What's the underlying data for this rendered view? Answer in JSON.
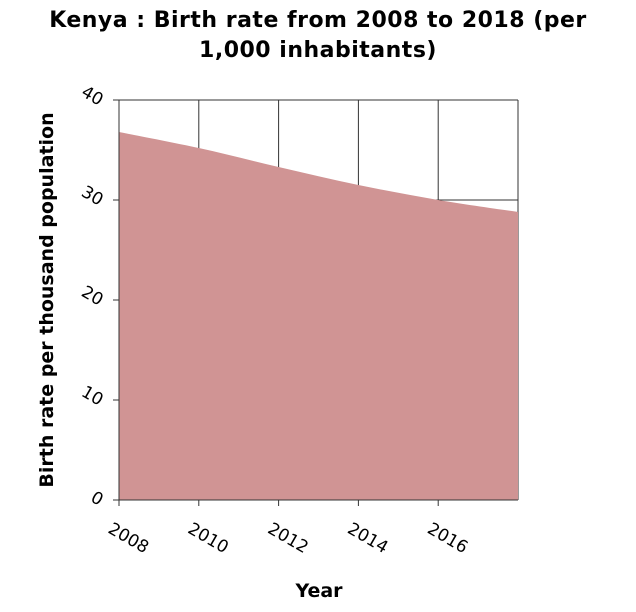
{
  "chart_data": {
    "type": "area",
    "title_line1": "Kenya : Birth rate from 2008 to 2018 (per",
    "title_line2": "1,000 inhabitants)",
    "xlabel": "Year",
    "ylabel": "Birth rate per thousand population",
    "x": [
      2008,
      2010,
      2012,
      2014,
      2016,
      2018
    ],
    "y": [
      36.8,
      35.2,
      33.3,
      31.5,
      30.0,
      28.8
    ],
    "x_ticks": [
      "2008",
      "2010",
      "2012",
      "2014",
      "2016"
    ],
    "y_ticks": [
      "0",
      "10",
      "20",
      "30",
      "40"
    ],
    "xlim": [
      2008,
      2018
    ],
    "ylim": [
      0,
      40
    ],
    "grid": true,
    "fill_color": "#d09494"
  }
}
